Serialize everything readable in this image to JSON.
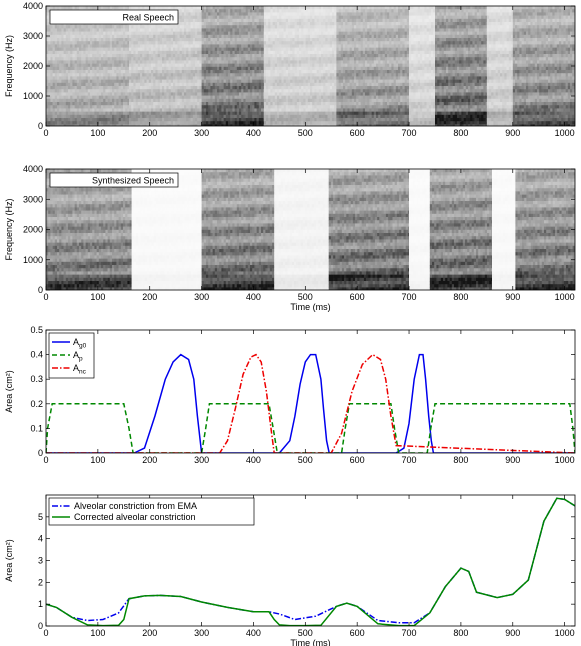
{
  "chart_data": [
    {
      "type": "heatmap",
      "legend": "Real Speech",
      "xlabel": "",
      "ylabel": "Frequency (Hz)",
      "xlim": [
        0,
        1020
      ],
      "ylim": [
        0,
        4000
      ],
      "xticks": [
        0,
        100,
        200,
        300,
        400,
        500,
        600,
        700,
        800,
        900,
        1000
      ],
      "yticks": [
        0,
        1000,
        2000,
        3000,
        4000
      ],
      "voiced_segments": [
        {
          "start": 0,
          "end": 160,
          "energy": 0.55
        },
        {
          "start": 160,
          "end": 300,
          "energy": 0.45
        },
        {
          "start": 300,
          "end": 420,
          "energy": 0.9
        },
        {
          "start": 420,
          "end": 560,
          "energy": 0.35
        },
        {
          "start": 560,
          "end": 700,
          "energy": 0.7
        },
        {
          "start": 700,
          "end": 750,
          "energy": 0.3
        },
        {
          "start": 750,
          "end": 850,
          "energy": 0.95
        },
        {
          "start": 850,
          "end": 900,
          "energy": 0.35
        },
        {
          "start": 900,
          "end": 1020,
          "energy": 0.8
        }
      ]
    },
    {
      "type": "heatmap",
      "legend": "Synthesized Speech",
      "xlabel": "Time (ms)",
      "ylabel": "Frequency (Hz)",
      "xlim": [
        0,
        1020
      ],
      "ylim": [
        0,
        4000
      ],
      "xticks": [
        0,
        100,
        200,
        300,
        400,
        500,
        600,
        700,
        800,
        900,
        1000
      ],
      "yticks": [
        0,
        1000,
        2000,
        3000,
        4000
      ],
      "voiced_segments": [
        {
          "start": 0,
          "end": 165,
          "energy": 0.85
        },
        {
          "start": 165,
          "end": 300,
          "energy": 0.05
        },
        {
          "start": 300,
          "end": 440,
          "energy": 0.9
        },
        {
          "start": 440,
          "end": 545,
          "energy": 0.1
        },
        {
          "start": 545,
          "end": 700,
          "energy": 0.95
        },
        {
          "start": 700,
          "end": 740,
          "energy": 0.05
        },
        {
          "start": 740,
          "end": 860,
          "energy": 0.95
        },
        {
          "start": 860,
          "end": 905,
          "energy": 0.05
        },
        {
          "start": 905,
          "end": 1020,
          "energy": 0.9
        }
      ]
    },
    {
      "type": "line",
      "xlabel": "",
      "ylabel": "Area (cm²)",
      "xlim": [
        0,
        1020
      ],
      "ylim": [
        0,
        0.5
      ],
      "xticks": [
        0,
        100,
        200,
        300,
        400,
        500,
        600,
        700,
        800,
        900,
        1000
      ],
      "yticks": [
        0,
        0.1,
        0.2,
        0.3,
        0.4,
        0.5
      ],
      "legend_position": "top-left",
      "series": [
        {
          "name": "Ag0",
          "color": "#0000ee",
          "dash": "solid",
          "x": [
            0,
            170,
            190,
            210,
            230,
            245,
            260,
            275,
            285,
            292,
            300,
            400,
            450,
            470,
            480,
            490,
            500,
            510,
            520,
            530,
            535,
            541,
            546,
            550,
            675,
            690,
            700,
            710,
            720,
            727,
            732,
            738,
            743,
            747,
            1020
          ],
          "y": [
            0,
            0,
            0.02,
            0.15,
            0.3,
            0.37,
            0.4,
            0.38,
            0.3,
            0.15,
            0,
            0,
            0,
            0.05,
            0.15,
            0.28,
            0.37,
            0.4,
            0.4,
            0.3,
            0.18,
            0.05,
            0,
            0,
            0,
            0.02,
            0.12,
            0.3,
            0.4,
            0.4,
            0.3,
            0.15,
            0.05,
            0,
            0
          ]
        },
        {
          "name": "Ap",
          "color": "#008800",
          "dash": "dashed",
          "x": [
            0,
            3,
            12,
            150,
            160,
            168,
            300,
            308,
            315,
            430,
            438,
            446,
            570,
            577,
            585,
            665,
            672,
            680,
            735,
            742,
            750,
            1010,
            1016,
            1020
          ],
          "y": [
            0,
            0.1,
            0.2,
            0.2,
            0.1,
            0,
            0,
            0.1,
            0.2,
            0.2,
            0.1,
            0,
            0,
            0.1,
            0.2,
            0.2,
            0.1,
            0,
            0,
            0.1,
            0.2,
            0.2,
            0.1,
            0
          ]
        },
        {
          "name": "Anc",
          "color": "#ee0000",
          "dash": "dashdot",
          "x": [
            0,
            335,
            350,
            365,
            380,
            395,
            405,
            415,
            425,
            435,
            440,
            550,
            570,
            590,
            610,
            630,
            645,
            655,
            665,
            675,
            1020
          ],
          "y": [
            0,
            0,
            0.05,
            0.18,
            0.32,
            0.39,
            0.4,
            0.37,
            0.25,
            0.08,
            0,
            0,
            0.08,
            0.25,
            0.36,
            0.4,
            0.38,
            0.3,
            0.15,
            0.03,
            0
          ]
        }
      ]
    },
    {
      "type": "line",
      "xlabel": "Time (ms)",
      "ylabel": "Area (cm²)",
      "xlim": [
        0,
        1020
      ],
      "ylim": [
        0,
        6
      ],
      "xticks": [
        0,
        100,
        200,
        300,
        400,
        500,
        600,
        700,
        800,
        900,
        1000
      ],
      "yticks": [
        0,
        1,
        2,
        3,
        4,
        5
      ],
      "legend_position": "top-left",
      "series": [
        {
          "name": "Alveolar constriction from EMA",
          "color": "#0000ee",
          "dash": "dashdot",
          "x": [
            0,
            20,
            50,
            80,
            110,
            140,
            160,
            190,
            220,
            260,
            300,
            350,
            400,
            430,
            450,
            480,
            520,
            560,
            580,
            600,
            640,
            680,
            710,
            740,
            770,
            800,
            815,
            830,
            870,
            900,
            930,
            960,
            985,
            1000,
            1020
          ],
          "y": [
            1.0,
            0.85,
            0.4,
            0.25,
            0.3,
            0.6,
            1.25,
            1.38,
            1.4,
            1.35,
            1.1,
            0.85,
            0.65,
            0.65,
            0.55,
            0.3,
            0.45,
            0.9,
            1.05,
            0.9,
            0.25,
            0.15,
            0.15,
            0.6,
            1.8,
            2.65,
            2.5,
            1.55,
            1.3,
            1.45,
            2.1,
            4.8,
            5.85,
            5.8,
            5.5
          ]
        },
        {
          "name": "Corrected alveolar constriction",
          "color": "#008800",
          "dash": "solid",
          "x": [
            0,
            20,
            50,
            80,
            110,
            140,
            150,
            160,
            190,
            220,
            260,
            300,
            350,
            400,
            430,
            440,
            450,
            470,
            500,
            530,
            560,
            580,
            600,
            640,
            680,
            710,
            740,
            770,
            800,
            815,
            830,
            870,
            900,
            930,
            960,
            985,
            1000,
            1020
          ],
          "y": [
            1.0,
            0.85,
            0.4,
            0.05,
            0.02,
            0.03,
            0.3,
            1.25,
            1.38,
            1.4,
            1.35,
            1.1,
            0.85,
            0.65,
            0.65,
            0.3,
            0.05,
            0.02,
            0.02,
            0.03,
            0.9,
            1.05,
            0.9,
            0.1,
            0.02,
            0.02,
            0.6,
            1.8,
            2.65,
            2.5,
            1.55,
            1.3,
            1.45,
            2.1,
            4.8,
            5.85,
            5.8,
            5.5
          ]
        }
      ]
    }
  ]
}
